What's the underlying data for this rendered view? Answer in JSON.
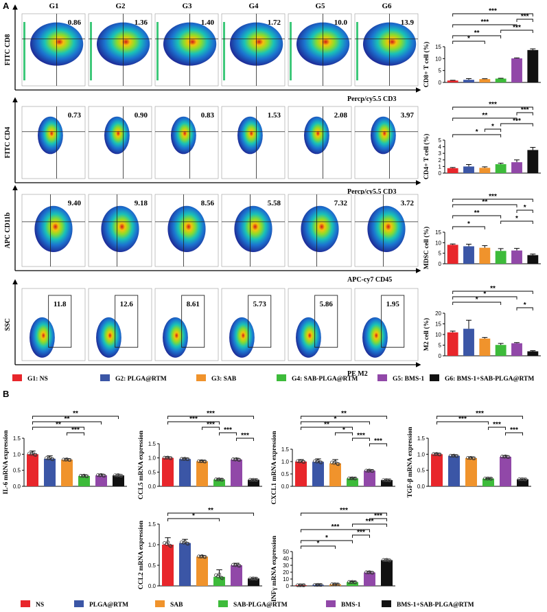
{
  "panel_labels": {
    "a": "A",
    "b": "B"
  },
  "groups": [
    "G1",
    "G2",
    "G3",
    "G4",
    "G5",
    "G6"
  ],
  "colors": [
    "#e8262b",
    "#3b56a6",
    "#f0932c",
    "#3dbb3a",
    "#9148a8",
    "#111111"
  ],
  "flow_rows": [
    {
      "y_axis": "FITC CD8",
      "x_axis": "Percp/cy5.5 CD3",
      "values": [
        "0.86",
        "1.36",
        "1.40",
        "1.72",
        "10.0",
        "13.9"
      ],
      "style": "quadrant"
    },
    {
      "y_axis": "FITC CD4",
      "x_axis": "Percp/cy5.5 CD3",
      "values": [
        "0.73",
        "0.90",
        "0.83",
        "1.53",
        "2.08",
        "3.97"
      ],
      "style": "quadrant"
    },
    {
      "y_axis": "APC CD11b",
      "x_axis": "APC-cy7 CD45",
      "values": [
        "9.40",
        "9.18",
        "8.56",
        "5.58",
        "7.32",
        "3.72"
      ],
      "style": "quadrant"
    },
    {
      "y_axis": "SSC",
      "x_axis": "PE M2",
      "values": [
        "11.8",
        "12.6",
        "8.61",
        "5.73",
        "5.86",
        "1.95"
      ],
      "style": "gate"
    }
  ],
  "legend_a": [
    "G1: NS",
    "G2: PLGA@RTM",
    "G3: SAB",
    "G4: SAB-PLGA@RTM",
    "G5: BMS-1",
    "G6: BMS-1+SAB-PLGA@RTM"
  ],
  "legend_b": [
    "NS",
    "PLGA@RTM",
    "SAB",
    "SAB-PLGA@RTM",
    "BMS-1",
    "BMS-1+SAB-PLGA@RTM"
  ],
  "chart_data": [
    {
      "id": "cd8",
      "type": "bar",
      "ylabel": "CD8+ T cell (%)",
      "categories": [
        "G1",
        "G2",
        "G3",
        "G4",
        "G5",
        "G6"
      ],
      "values": [
        0.8,
        1.1,
        1.4,
        1.6,
        10.1,
        13.6
      ],
      "errors": [
        0.1,
        0.5,
        0.15,
        0.15,
        0.2,
        0.5
      ],
      "ylim": [
        0,
        15
      ],
      "yticks": [
        0,
        5,
        10,
        15
      ],
      "dots": false,
      "significance": [
        {
          "from": 0,
          "to": 5,
          "label": "***"
        },
        {
          "from": 4,
          "to": 5,
          "label": "***"
        },
        {
          "from": 0,
          "to": 4,
          "label": "***"
        },
        {
          "from": 3,
          "to": 5,
          "label": "***"
        },
        {
          "from": 0,
          "to": 3,
          "label": "**"
        },
        {
          "from": 0,
          "to": 2,
          "label": "*"
        }
      ]
    },
    {
      "id": "cd4",
      "type": "bar",
      "ylabel": "CD4+ T cell (%)",
      "categories": [
        "G1",
        "G2",
        "G3",
        "G4",
        "G5",
        "G6"
      ],
      "values": [
        0.75,
        1.0,
        0.8,
        1.35,
        1.65,
        3.5
      ],
      "errors": [
        0.1,
        0.3,
        0.15,
        0.15,
        0.35,
        0.4
      ],
      "ylim": [
        0,
        5
      ],
      "yticks": [
        0,
        1,
        2,
        3,
        4,
        5
      ],
      "dots": false,
      "significance": [
        {
          "from": 0,
          "to": 5,
          "label": "***"
        },
        {
          "from": 4,
          "to": 5,
          "label": "***"
        },
        {
          "from": 0,
          "to": 4,
          "label": "**"
        },
        {
          "from": 3,
          "to": 5,
          "label": "***"
        },
        {
          "from": 2,
          "to": 3,
          "label": "*"
        },
        {
          "from": 0,
          "to": 3,
          "label": "*"
        }
      ]
    },
    {
      "id": "mdsc",
      "type": "bar",
      "ylabel": "MDSC cell (%)",
      "categories": [
        "G1",
        "G2",
        "G3",
        "G4",
        "G5",
        "G6"
      ],
      "values": [
        9.0,
        8.3,
        7.6,
        6.1,
        6.3,
        4.1
      ],
      "errors": [
        0.4,
        1.0,
        1.0,
        1.1,
        1.0,
        0.5
      ],
      "ylim": [
        0,
        15
      ],
      "yticks": [
        0,
        5,
        10,
        15
      ],
      "dots": false,
      "significance": [
        {
          "from": 0,
          "to": 5,
          "label": "***"
        },
        {
          "from": 0,
          "to": 4,
          "label": "**"
        },
        {
          "from": 4,
          "to": 5,
          "label": "*"
        },
        {
          "from": 0,
          "to": 3,
          "label": "**"
        },
        {
          "from": 3,
          "to": 5,
          "label": "*"
        },
        {
          "from": 0,
          "to": 2,
          "label": "*"
        }
      ]
    },
    {
      "id": "m2",
      "type": "bar",
      "ylabel": "M2 cell (%)",
      "categories": [
        "G1",
        "G2",
        "G3",
        "G4",
        "G5",
        "G6"
      ],
      "values": [
        11.0,
        12.7,
        8.1,
        5.1,
        5.9,
        2.1
      ],
      "errors": [
        0.6,
        4.0,
        0.5,
        0.7,
        0.3,
        0.3
      ],
      "ylim": [
        0,
        20
      ],
      "yticks": [
        0,
        5,
        10,
        15,
        20
      ],
      "dots": false,
      "significance": [
        {
          "from": 0,
          "to": 5,
          "label": "**"
        },
        {
          "from": 0,
          "to": 4,
          "label": "*"
        },
        {
          "from": 0,
          "to": 3,
          "label": "*"
        },
        {
          "from": 4,
          "to": 5,
          "label": "*"
        }
      ]
    },
    {
      "id": "il6",
      "type": "bar",
      "ylabel": "IL-6 mRNA expression",
      "categories": [
        "NS",
        "PLGA@RTM",
        "SAB",
        "SAB-PLGA@RTM",
        "BMS-1",
        "BMS-1+SAB-PLGA@RTM"
      ],
      "values": [
        1.0,
        0.86,
        0.83,
        0.32,
        0.34,
        0.34
      ],
      "errors": [
        0.1,
        0.09,
        0.03,
        0.04,
        0.04,
        0.03
      ],
      "ylim": [
        0,
        1.5
      ],
      "yticks": [
        0,
        0.5,
        1.0,
        1.5
      ],
      "dots": true,
      "significance": [
        {
          "from": 0,
          "to": 5,
          "label": "**"
        },
        {
          "from": 0,
          "to": 4,
          "label": "**"
        },
        {
          "from": 0,
          "to": 3,
          "label": "**"
        },
        {
          "from": 2,
          "to": 3,
          "label": "***"
        }
      ]
    },
    {
      "id": "ccl5",
      "type": "bar",
      "ylabel": "CCL5 mRNA expression",
      "categories": [
        "NS",
        "PLGA@RTM",
        "SAB",
        "SAB-PLGA@RTM",
        "BMS-1",
        "BMS-1+SAB-PLGA@RTM"
      ],
      "values": [
        1.0,
        0.96,
        0.88,
        0.24,
        0.94,
        0.23
      ],
      "errors": [
        0.04,
        0.03,
        0.03,
        0.02,
        0.05,
        0.01
      ],
      "ylim": [
        0,
        1.5
      ],
      "yticks": [
        0,
        0.5,
        1.0,
        1.5
      ],
      "dots": true,
      "significance": [
        {
          "from": 0,
          "to": 5,
          "label": "***"
        },
        {
          "from": 0,
          "to": 3,
          "label": "***"
        },
        {
          "from": 2,
          "to": 3,
          "label": "***"
        },
        {
          "from": 3,
          "to": 4,
          "label": "***"
        },
        {
          "from": 4,
          "to": 5,
          "label": "***"
        }
      ]
    },
    {
      "id": "cxcl1",
      "type": "bar",
      "ylabel": "CXCL1 mRNA expression",
      "categories": [
        "NS",
        "PLGA@RTM",
        "SAB",
        "SAB-PLGA@RTM",
        "BMS-1",
        "BMS-1+SAB-PLGA@RTM"
      ],
      "values": [
        1.0,
        0.99,
        0.93,
        0.32,
        0.63,
        0.25
      ],
      "errors": [
        0.08,
        0.12,
        0.15,
        0.02,
        0.03,
        0.02
      ],
      "ylim": [
        0,
        1.5
      ],
      "yticks": [
        0,
        0.5,
        1.0,
        1.5
      ],
      "dots": true,
      "significance": [
        {
          "from": 0,
          "to": 5,
          "label": "**"
        },
        {
          "from": 0,
          "to": 4,
          "label": "*"
        },
        {
          "from": 0,
          "to": 3,
          "label": "**"
        },
        {
          "from": 2,
          "to": 3,
          "label": "*"
        },
        {
          "from": 3,
          "to": 4,
          "label": "***"
        },
        {
          "from": 4,
          "to": 5,
          "label": "***"
        }
      ]
    },
    {
      "id": "tgfb",
      "type": "bar",
      "ylabel": "TGF-β mRNA expression",
      "categories": [
        "NS",
        "PLGA@RTM",
        "SAB",
        "SAB-PLGA@RTM",
        "BMS-1",
        "BMS-1+SAB-PLGA@RTM"
      ],
      "values": [
        1.0,
        0.95,
        0.88,
        0.24,
        0.92,
        0.22
      ],
      "errors": [
        0.03,
        0.03,
        0.03,
        0.01,
        0.04,
        0.01
      ],
      "ylim": [
        0,
        1.5
      ],
      "yticks": [
        0,
        0.5,
        1.0,
        1.5
      ],
      "dots": true,
      "significance": [
        {
          "from": 0,
          "to": 5,
          "label": "***"
        },
        {
          "from": 0,
          "to": 3,
          "label": "***"
        },
        {
          "from": 3,
          "to": 4,
          "label": "***"
        },
        {
          "from": 4,
          "to": 5,
          "label": "***"
        }
      ]
    },
    {
      "id": "ccl2",
      "type": "bar",
      "ylabel": "CCL2 mRNA expression",
      "categories": [
        "NS",
        "PLGA@RTM",
        "SAB",
        "SAB-PLGA@RTM",
        "BMS-1",
        "BMS-1+SAB-PLGA@RTM"
      ],
      "values": [
        1.0,
        1.04,
        0.71,
        0.22,
        0.5,
        0.18
      ],
      "errors": [
        0.17,
        0.09,
        0.03,
        0.17,
        0.05,
        0.01
      ],
      "ylim": [
        0,
        1.5
      ],
      "yticks": [
        0,
        0.5,
        1.0,
        1.5
      ],
      "dots": true,
      "significance": [
        {
          "from": 0,
          "to": 5,
          "label": "**"
        },
        {
          "from": 0,
          "to": 3,
          "label": "*"
        }
      ]
    },
    {
      "id": "infg",
      "type": "bar",
      "ylabel": "INFγ mRNA expression",
      "categories": [
        "NS",
        "PLGA@RTM",
        "SAB",
        "SAB-PLGA@RTM",
        "BMS-1",
        "BMS-1+SAB-PLGA@RTM"
      ],
      "values": [
        1.0,
        1.5,
        2.2,
        5.5,
        19.5,
        37.5
      ],
      "errors": [
        0.1,
        0.3,
        0.6,
        1.0,
        1.5,
        1.6
      ],
      "ylim": [
        0,
        50
      ],
      "yticks": [
        0,
        10,
        20,
        30,
        40,
        50
      ],
      "dots": true,
      "significance": [
        {
          "from": 0,
          "to": 5,
          "label": "***"
        },
        {
          "from": 4,
          "to": 5,
          "label": "***"
        },
        {
          "from": 3,
          "to": 5,
          "label": "***"
        },
        {
          "from": 0,
          "to": 4,
          "label": "***"
        },
        {
          "from": 3,
          "to": 4,
          "label": "***"
        },
        {
          "from": 0,
          "to": 3,
          "label": "*"
        },
        {
          "from": 0,
          "to": 2,
          "label": "*"
        }
      ]
    }
  ]
}
